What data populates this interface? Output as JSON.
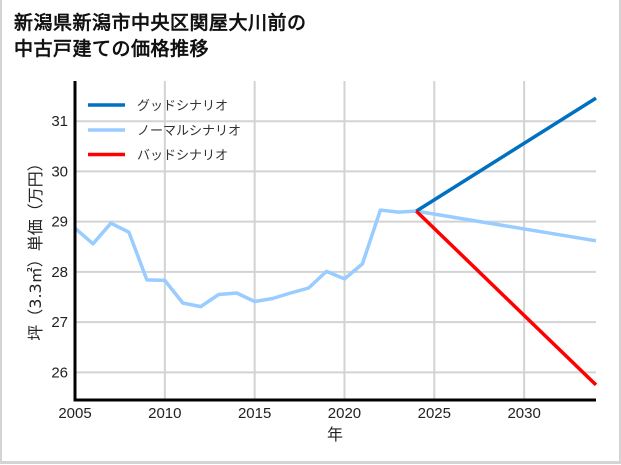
{
  "title": {
    "line1": "新潟県新潟市中央区関屋大川前の",
    "line2": "中古戸建ての価格推移"
  },
  "colors": {
    "good": "#0070c0",
    "normal": "#99ccff",
    "bad": "#ff0000",
    "grid": "#d3d3d3",
    "axis": "#000000"
  },
  "chart_data": {
    "type": "line",
    "title": "新潟県新潟市中央区関屋大川前の中古戸建ての価格推移",
    "xlabel": "年",
    "ylabel": "坪（3.3㎡）単価（万円）",
    "xlim": [
      2005,
      2034
    ],
    "ylim": [
      25.45,
      31.8
    ],
    "xticks": [
      2005,
      2010,
      2015,
      2020,
      2025,
      2030
    ],
    "yticks": [
      26,
      27,
      28,
      29,
      30,
      31
    ],
    "grid": true,
    "legend_position": "upper left",
    "legend": [
      "グッドシナリオ",
      "ノーマルシナリオ",
      "バッドシナリオ"
    ],
    "series": [
      {
        "name": "ノーマルシナリオ",
        "color": "#99ccff",
        "x": [
          2005,
          2006,
          2007,
          2008,
          2009,
          2010,
          2011,
          2012,
          2013,
          2014,
          2015,
          2016,
          2017,
          2018,
          2019,
          2020,
          2021,
          2022,
          2023,
          2024,
          2034
        ],
        "y": [
          28.87,
          28.56,
          28.97,
          28.79,
          27.84,
          27.83,
          27.38,
          27.31,
          27.55,
          27.58,
          27.41,
          27.47,
          27.58,
          27.68,
          28.01,
          27.86,
          28.16,
          29.23,
          29.19,
          29.21,
          28.62
        ]
      },
      {
        "name": "グッドシナリオ",
        "color": "#0070c0",
        "x": [
          2024,
          2034
        ],
        "y": [
          29.21,
          31.46
        ]
      },
      {
        "name": "バッドシナリオ",
        "color": "#ff0000",
        "x": [
          2024,
          2034
        ],
        "y": [
          29.21,
          25.75
        ]
      }
    ]
  }
}
